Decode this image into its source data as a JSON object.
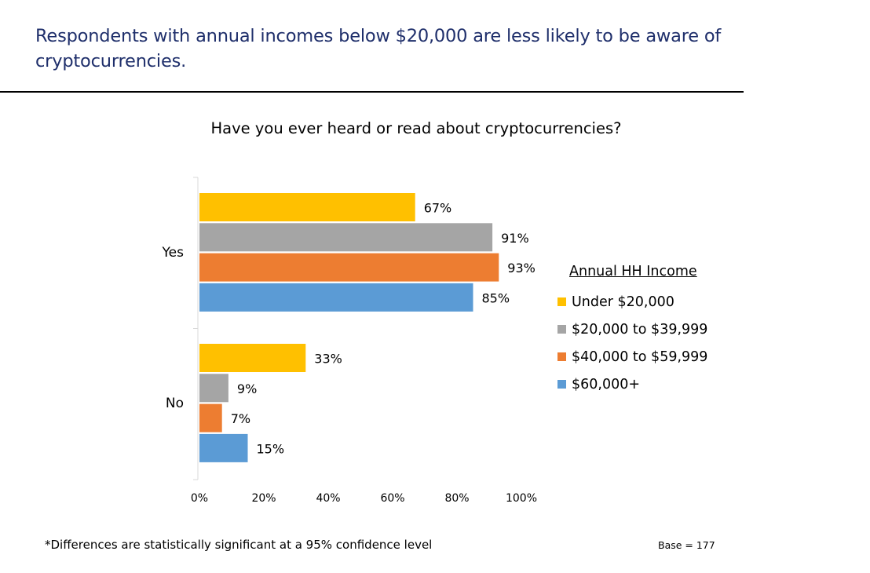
{
  "slide": {
    "title": "Respondents with annual incomes below $20,000 are less likely to be aware of cryptocurrencies.",
    "footnote": "*Differences are statistically significant at a 95% confidence level",
    "base_note": "Base = 177"
  },
  "legend": {
    "title": "Annual HH Income"
  },
  "chart_data": {
    "type": "bar",
    "orientation": "horizontal",
    "title": "Have you ever heard or read about cryptocurrencies?",
    "categories": [
      "Yes",
      "No"
    ],
    "series": [
      {
        "name": "Under $20,000",
        "values": [
          67,
          33
        ],
        "labels": [
          "67%",
          "33%"
        ],
        "color": "#FFC000"
      },
      {
        "name": "$20,000 to $39,999",
        "values": [
          91,
          9
        ],
        "labels": [
          "91%",
          "9%"
        ],
        "color": "#A5A5A5"
      },
      {
        "name": "$40,000 to $59,999",
        "values": [
          93,
          7
        ],
        "labels": [
          "93%",
          "7%"
        ],
        "color": "#ED7D31"
      },
      {
        "name": "$60,000+",
        "values": [
          85,
          15
        ],
        "labels": [
          "85%",
          "15%"
        ],
        "color": "#5B9BD5"
      }
    ],
    "x_ticks": [
      "0%",
      "20%",
      "40%",
      "60%",
      "80%",
      "100%"
    ],
    "xlim": [
      0,
      100
    ],
    "grid": false,
    "legend_position": "right"
  }
}
